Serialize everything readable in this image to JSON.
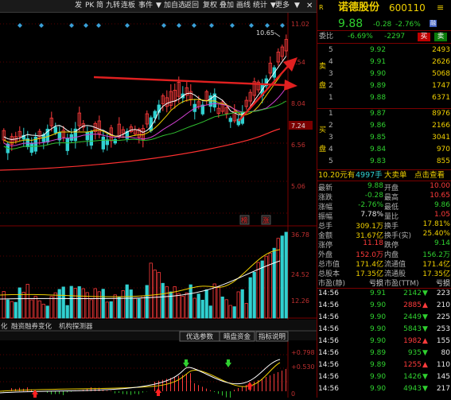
{
  "toolbar": {
    "items": [
      "发",
      "PK",
      "简",
      "九转",
      "连板",
      "事件",
      "▼",
      "加自选",
      "返回",
      "复权",
      "叠加",
      "画线",
      "统计",
      "▼",
      "更多",
      "▼"
    ],
    "close_icon": "close-icon"
  },
  "kline": {
    "price_labels": [
      "11.02",
      "10.65",
      "9.54",
      "8.04",
      "7.24",
      "6.56",
      "5.06"
    ],
    "high_marker": "10.65",
    "current_marker": "7.24",
    "badges": [
      "榜",
      "涨"
    ],
    "up_color": "#ff3b3b",
    "down_color": "#30d0d0"
  },
  "volume": {
    "labels": [
      "36.78",
      "24.52",
      "12.26"
    ]
  },
  "tabs": {
    "left": [
      "化",
      "融资融券变化",
      "机构探测器"
    ],
    "right": [
      "优选参数",
      "暗盘资金",
      "指标说明"
    ]
  },
  "macd": {
    "labels": [
      "+0.798",
      "+0.530",
      "0"
    ]
  },
  "panel": {
    "badge": "R",
    "name": "诺德股份",
    "code": "600110",
    "price": "9.88",
    "change": "-0.28",
    "change_pct": "-2.76%",
    "tag": "融",
    "weibi_label": "委比",
    "weibi": "-6.69%",
    "weicha": "-2297",
    "buy_btn": "买",
    "sell_btn": "卖",
    "sell_side_label": [
      "卖",
      "盘"
    ],
    "buy_side_label": [
      "买",
      "盘"
    ],
    "asks": [
      {
        "level": "5",
        "price": "9.92",
        "vol": "2493"
      },
      {
        "level": "4",
        "price": "9.91",
        "vol": "2626"
      },
      {
        "level": "3",
        "price": "9.90",
        "vol": "5068"
      },
      {
        "level": "2",
        "price": "9.89",
        "vol": "1747"
      },
      {
        "level": "1",
        "price": "9.88",
        "vol": "6371"
      }
    ],
    "bids": [
      {
        "level": "1",
        "price": "9.87",
        "vol": "8976"
      },
      {
        "level": "2",
        "price": "9.86",
        "vol": "2166"
      },
      {
        "level": "3",
        "price": "9.85",
        "vol": "3041"
      },
      {
        "level": "4",
        "price": "9.84",
        "vol": "970"
      },
      {
        "level": "5",
        "price": "9.83",
        "vol": "855"
      }
    ],
    "big_order": {
      "price": "10.20元有",
      "vol": "4997手",
      "type": "大卖单",
      "link": "点击查看"
    },
    "stats": [
      {
        "l1": "最新",
        "v1": "9.88",
        "c1": "green",
        "l2": "开盘",
        "v2": "10.00",
        "c2": "red"
      },
      {
        "l1": "涨跌",
        "v1": "-0.28",
        "c1": "green",
        "l2": "最高",
        "v2": "10.65",
        "c2": "red"
      },
      {
        "l1": "涨幅",
        "v1": "-2.76%",
        "c1": "green",
        "l2": "最低",
        "v2": "9.86",
        "c2": "green"
      },
      {
        "l1": "振幅",
        "v1": "7.78%",
        "c1": "white",
        "l2": "量比",
        "v2": "1.05",
        "c2": "red"
      },
      {
        "l1": "总手",
        "v1": "309.1万",
        "c1": "yellow",
        "l2": "换手",
        "v2": "17.81%",
        "c2": "yellow"
      },
      {
        "l1": "金额",
        "v1": "31.67亿",
        "c1": "yellow",
        "l2": "换手(实)",
        "v2": "25.40%",
        "c2": "yellow"
      },
      {
        "l1": "涨停",
        "v1": "11.18",
        "c1": "red",
        "l2": "跌停",
        "v2": "9.14",
        "c2": "green"
      },
      {
        "l1": "外盘",
        "v1": "152.0万",
        "c1": "red",
        "l2": "内盘",
        "v2": "156.2万",
        "c2": "green"
      },
      {
        "l1": "总市值",
        "v1": "171.4亿",
        "c1": "yellow",
        "l2": "流通值",
        "v2": "171.4亿",
        "c2": "yellow"
      },
      {
        "l1": "总股本",
        "v1": "17.35亿",
        "c1": "yellow",
        "l2": "流通股",
        "v2": "17.35亿",
        "c2": "yellow"
      },
      {
        "l1": "市盈(静)",
        "v1": "亏损",
        "c1": "white",
        "l2": "市盈(TTM)",
        "v2": "亏损",
        "c2": "white"
      }
    ],
    "ticks": [
      {
        "time": "14:56",
        "price": "9.91",
        "vol": "2142",
        "dir": "down",
        "n": "223"
      },
      {
        "time": "14:56",
        "price": "9.90",
        "vol": "2885",
        "dir": "up",
        "n": "210"
      },
      {
        "time": "14:56",
        "price": "9.90",
        "vol": "2449",
        "dir": "down",
        "n": "225"
      },
      {
        "time": "14:56",
        "price": "9.90",
        "vol": "5843",
        "dir": "down",
        "n": "253"
      },
      {
        "time": "14:56",
        "price": "9.90",
        "vol": "1982",
        "dir": "up",
        "n": "155"
      },
      {
        "time": "14:56",
        "price": "9.89",
        "vol": "935",
        "dir": "down",
        "n": "80"
      },
      {
        "time": "14:56",
        "price": "9.89",
        "vol": "1255",
        "dir": "up",
        "n": "110"
      },
      {
        "time": "14:56",
        "price": "9.90",
        "vol": "1426",
        "dir": "down",
        "n": "145"
      },
      {
        "time": "14:56",
        "price": "9.90",
        "vol": "4943",
        "dir": "down",
        "n": "217"
      }
    ]
  }
}
